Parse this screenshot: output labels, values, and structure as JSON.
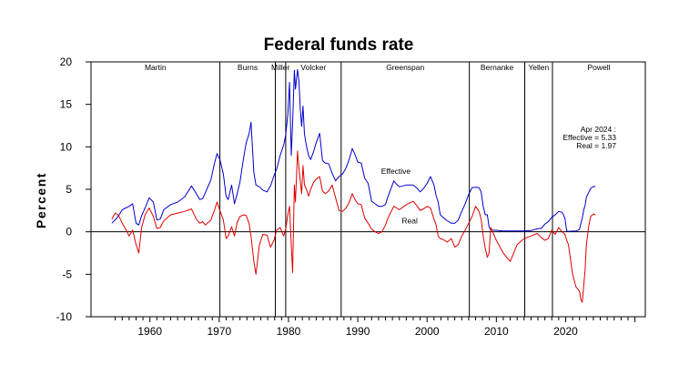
{
  "chart_data": {
    "type": "line",
    "title": "Federal funds rate",
    "xlabel": "",
    "ylabel": "Percent",
    "xlim": [
      1951.5,
      2031.5
    ],
    "ylim": [
      -10,
      20
    ],
    "x_ticks": [
      1960,
      1970,
      1980,
      1990,
      2000,
      2010,
      2020
    ],
    "x_tick_labels": [
      "1960",
      "1970",
      "1980",
      "1990",
      "2000",
      "2010",
      "2020"
    ],
    "y_ticks": [
      -10,
      -5,
      0,
      5,
      10,
      15,
      20
    ],
    "y_tick_labels": [
      "-10",
      "-5",
      "0",
      "5",
      "10",
      "15",
      "20"
    ],
    "zero_line": true,
    "chairs": [
      {
        "name": "Martin",
        "start": 1951.3,
        "end": 1970.1
      },
      {
        "name": "Burns",
        "start": 1970.1,
        "end": 1978.1
      },
      {
        "name": "Miller",
        "start": 1978.1,
        "end": 1979.6
      },
      {
        "name": "Volcker",
        "start": 1979.6,
        "end": 1987.6
      },
      {
        "name": "Greenspan",
        "start": 1987.6,
        "end": 2006.1
      },
      {
        "name": "Bernanke",
        "start": 2006.1,
        "end": 2014.1
      },
      {
        "name": "Yellen",
        "start": 2014.1,
        "end": 2018.1
      },
      {
        "name": "Powell",
        "start": 2018.1,
        "end": 2031.5
      }
    ],
    "annotation": {
      "lines": [
        "Apr 2024 :",
        "Effective = 5.33",
        "Real = 1.97"
      ]
    },
    "series": [
      {
        "name": "Effective",
        "color": "#0000cc",
        "label_at": [
          1995.5,
          6.8
        ],
        "x": [
          1954.5,
          1955.0,
          1955.5,
          1956.0,
          1956.5,
          1957.0,
          1957.5,
          1958.0,
          1958.4,
          1958.8,
          1959.3,
          1959.9,
          1960.5,
          1961.0,
          1961.5,
          1962.0,
          1963.0,
          1964.0,
          1965.0,
          1966.0,
          1966.7,
          1967.2,
          1967.6,
          1968.0,
          1968.8,
          1969.3,
          1969.7,
          1970.1,
          1970.6,
          1971.0,
          1971.3,
          1971.8,
          1972.2,
          1972.6,
          1973.0,
          1973.5,
          1973.9,
          1974.3,
          1974.6,
          1975.0,
          1975.3,
          1975.8,
          1976.3,
          1976.9,
          1977.4,
          1977.9,
          1978.3,
          1978.8,
          1979.3,
          1979.6,
          1979.9,
          1980.15,
          1980.4,
          1980.6,
          1980.85,
          1981.0,
          1981.3,
          1981.5,
          1981.7,
          1981.9,
          1982.1,
          1982.3,
          1982.6,
          1982.9,
          1983.2,
          1983.6,
          1984.0,
          1984.5,
          1984.9,
          1985.3,
          1985.8,
          1986.3,
          1986.8,
          1987.3,
          1987.8,
          1988.3,
          1988.8,
          1989.2,
          1989.6,
          1990.0,
          1990.5,
          1991.0,
          1991.5,
          1992.0,
          1992.5,
          1993.0,
          1993.5,
          1994.0,
          1994.3,
          1994.7,
          1995.2,
          1995.6,
          1996.0,
          1997.0,
          1998.0,
          1998.6,
          1999.0,
          1999.5,
          2000.0,
          2000.5,
          2001.0,
          2001.3,
          2001.6,
          2001.9,
          2002.3,
          2002.9,
          2003.5,
          2004.0,
          2004.5,
          2005.0,
          2005.5,
          2006.0,
          2006.5,
          2007.0,
          2007.5,
          2007.8,
          2008.1,
          2008.4,
          2008.7,
          2008.95,
          2009.2,
          2010.0,
          2011.0,
          2012.0,
          2013.0,
          2014.0,
          2015.0,
          2015.9,
          2016.5,
          2017.0,
          2017.5,
          2018.0,
          2018.5,
          2019.0,
          2019.5,
          2019.9,
          2020.15,
          2020.4,
          2021.0,
          2021.5,
          2022.0,
          2022.2,
          2022.4,
          2022.6,
          2022.8,
          2023.0,
          2023.3,
          2023.6,
          2024.0,
          2024.3
        ],
        "y": [
          1.0,
          1.4,
          1.9,
          2.6,
          2.8,
          3.0,
          3.3,
          1.0,
          0.8,
          1.9,
          2.8,
          4.0,
          3.5,
          1.4,
          1.5,
          2.6,
          3.2,
          3.5,
          4.1,
          5.4,
          4.5,
          3.8,
          3.9,
          4.6,
          6.1,
          8.0,
          9.2,
          8.5,
          6.8,
          4.2,
          3.8,
          5.5,
          3.3,
          4.5,
          5.9,
          8.6,
          10.5,
          11.5,
          12.9,
          7.0,
          5.5,
          5.3,
          4.9,
          4.7,
          5.4,
          6.6,
          7.4,
          9.0,
          10.2,
          11.4,
          13.8,
          17.6,
          9.0,
          12.8,
          19.0,
          16.8,
          19.1,
          17.8,
          14.5,
          12.4,
          14.8,
          11.5,
          10.1,
          9.0,
          8.5,
          9.4,
          10.5,
          11.6,
          8.4,
          8.1,
          8.0,
          6.9,
          6.0,
          6.5,
          6.8,
          7.5,
          8.6,
          9.8,
          9.1,
          8.2,
          8.1,
          6.3,
          5.7,
          3.6,
          3.3,
          3.0,
          3.0,
          3.2,
          4.0,
          4.9,
          6.0,
          5.6,
          5.3,
          5.5,
          5.5,
          5.1,
          4.7,
          5.1,
          5.7,
          6.5,
          5.5,
          4.3,
          3.5,
          2.0,
          1.7,
          1.3,
          1.0,
          1.0,
          1.4,
          2.4,
          3.3,
          4.4,
          5.2,
          5.25,
          5.2,
          4.7,
          3.0,
          2.0,
          2.0,
          0.6,
          0.2,
          0.18,
          0.1,
          0.1,
          0.1,
          0.1,
          0.15,
          0.35,
          0.4,
          0.9,
          1.2,
          1.7,
          2.0,
          2.4,
          2.3,
          1.6,
          0.1,
          0.05,
          0.08,
          0.08,
          0.3,
          1.0,
          1.6,
          2.5,
          3.1,
          4.1,
          4.6,
          5.1,
          5.33,
          5.33
        ]
      },
      {
        "name": "Real",
        "color": "#e00000",
        "label_at": [
          1997.5,
          1.0
        ],
        "x": [
          1954.5,
          1955.0,
          1955.5,
          1956.0,
          1956.5,
          1957.0,
          1957.5,
          1958.0,
          1958.4,
          1958.8,
          1959.3,
          1959.9,
          1960.5,
          1961.0,
          1961.5,
          1962.0,
          1963.0,
          1964.0,
          1965.0,
          1966.0,
          1966.7,
          1967.2,
          1967.6,
          1968.0,
          1968.8,
          1969.3,
          1969.7,
          1970.1,
          1970.6,
          1971.0,
          1971.3,
          1971.8,
          1972.2,
          1972.6,
          1973.0,
          1973.5,
          1973.9,
          1974.3,
          1974.6,
          1975.0,
          1975.3,
          1975.8,
          1976.3,
          1976.9,
          1977.4,
          1977.9,
          1978.3,
          1978.8,
          1979.3,
          1979.6,
          1979.9,
          1980.15,
          1980.4,
          1980.6,
          1980.85,
          1981.0,
          1981.3,
          1981.5,
          1981.7,
          1981.9,
          1982.1,
          1982.3,
          1982.6,
          1982.9,
          1983.2,
          1983.6,
          1984.0,
          1984.5,
          1984.9,
          1985.3,
          1985.8,
          1986.3,
          1986.8,
          1987.3,
          1987.8,
          1988.3,
          1988.8,
          1989.2,
          1989.6,
          1990.0,
          1990.5,
          1991.0,
          1991.5,
          1992.0,
          1992.5,
          1993.0,
          1993.5,
          1994.0,
          1994.3,
          1994.7,
          1995.2,
          1995.6,
          1996.0,
          1997.0,
          1998.0,
          1998.6,
          1999.0,
          1999.5,
          2000.0,
          2000.5,
          2001.0,
          2001.3,
          2001.6,
          2001.9,
          2002.3,
          2002.9,
          2003.5,
          2004.0,
          2004.5,
          2005.0,
          2005.5,
          2006.0,
          2006.5,
          2007.0,
          2007.5,
          2007.8,
          2008.1,
          2008.4,
          2008.7,
          2008.95,
          2009.2,
          2010.0,
          2011.0,
          2012.0,
          2013.0,
          2014.0,
          2015.0,
          2015.9,
          2016.5,
          2017.0,
          2017.5,
          2018.0,
          2018.5,
          2019.0,
          2019.5,
          2019.9,
          2020.15,
          2020.4,
          2021.0,
          2021.5,
          2022.0,
          2022.2,
          2022.4,
          2022.6,
          2022.8,
          2023.0,
          2023.3,
          2023.6,
          2024.0,
          2024.3
        ],
        "y": [
          1.5,
          2.2,
          1.9,
          1.0,
          0.3,
          -0.5,
          0.2,
          -1.5,
          -2.5,
          0.5,
          2.0,
          2.8,
          1.8,
          0.4,
          0.5,
          1.3,
          2.0,
          2.2,
          2.4,
          2.7,
          1.5,
          1.0,
          1.2,
          0.8,
          1.4,
          2.5,
          3.5,
          2.5,
          1.4,
          -0.8,
          -0.5,
          0.6,
          -0.5,
          1.1,
          1.8,
          2.0,
          1.9,
          1.0,
          -0.5,
          -3.5,
          -5.0,
          -1.5,
          -0.3,
          -0.4,
          -1.8,
          -1.0,
          0.2,
          0.5,
          -0.5,
          0.3,
          2.0,
          3.0,
          -1.5,
          -4.8,
          5.5,
          3.5,
          9.5,
          7.5,
          6.0,
          4.5,
          7.8,
          5.5,
          5.0,
          4.2,
          5.0,
          5.8,
          6.2,
          6.5,
          4.8,
          4.5,
          4.8,
          5.5,
          4.0,
          2.5,
          2.4,
          2.8,
          3.5,
          4.5,
          3.8,
          3.3,
          3.2,
          1.6,
          1.0,
          0.3,
          0.0,
          -0.2,
          0.0,
          0.8,
          1.5,
          2.2,
          3.0,
          2.8,
          2.6,
          3.2,
          3.6,
          3.0,
          2.5,
          2.7,
          3.0,
          2.8,
          1.5,
          0.8,
          -0.5,
          -0.8,
          -0.9,
          -1.2,
          -0.8,
          -1.8,
          -1.5,
          -0.5,
          0.2,
          1.0,
          1.8,
          3.0,
          2.4,
          1.5,
          -0.5,
          -2.0,
          -3.0,
          -2.5,
          0.5,
          -1.0,
          -2.5,
          -3.5,
          -1.5,
          -0.8,
          -0.5,
          -0.2,
          -0.7,
          -1.0,
          -0.8,
          0.2,
          -0.3,
          0.5,
          0.0,
          -0.3,
          -1.0,
          -1.5,
          -5.0,
          -6.5,
          -7.0,
          -8.0,
          -8.3,
          -6.5,
          -4.5,
          -1.5,
          0.5,
          1.8,
          2.1,
          1.97
        ]
      }
    ]
  }
}
